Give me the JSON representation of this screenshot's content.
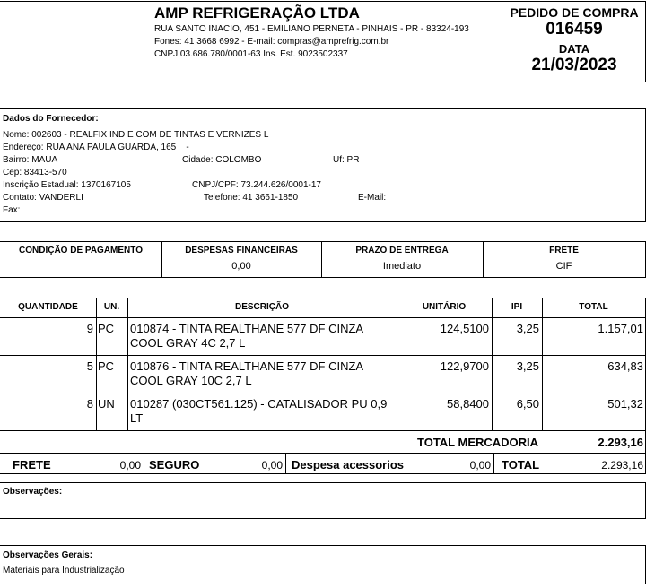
{
  "company": {
    "name": "AMP REFRIGERAÇÃO LTDA",
    "address": "RUA SANTO INACIO, 451 - EMILIANO PERNETA - PINHAIS - PR - 83324-193",
    "contact": "Fones: 41 3668 6992 - E-mail: compras@amprefrig.com.br",
    "cnpj": "CNPJ 03.686.780/0001-63 Ins. Est. 9023502337"
  },
  "order": {
    "title": "PEDIDO DE COMPRA",
    "number": "016459",
    "date_label": "DATA",
    "date": "21/03/2023"
  },
  "supplier": {
    "heading": "Dados do Fornecedor:",
    "nome": "Nome: 002603 - REALFIX IND E COM DE TINTAS E VERNIZES L",
    "endereco": "Endereço: RUA ANA PAULA GUARDA, 165    -",
    "bairro": "Bairro: MAUA",
    "cidade": "Cidade: COLOMBO",
    "uf": "Uf: PR",
    "cep": "Cep: 83413-570",
    "ie": "Inscrição Estadual: 1370167105",
    "cnpj": "CNPJ/CPF: 73.244.626/0001-17",
    "contato": "Contato: VANDERLI",
    "telefone": "Telefone: 41 3661-1850",
    "email": "E-Mail:",
    "fax": "Fax:"
  },
  "terms": [
    {
      "label": "CONDIÇÃO DE PAGAMENTO",
      "value": ""
    },
    {
      "label": "DESPESAS FINANCEIRAS",
      "value": "0,00"
    },
    {
      "label": "PRAZO DE ENTREGA",
      "value": "Imediato"
    },
    {
      "label": "FRETE",
      "value": "CIF"
    }
  ],
  "items": {
    "headers": [
      "QUANTIDADE",
      "UN.",
      "DESCRIÇÃO",
      "UNITÁRIO",
      "IPI",
      "TOTAL"
    ],
    "rows": [
      {
        "qty": "9",
        "un": "PC",
        "desc": "010874 - TINTA REALTHANE 577 DF CINZA COOL GRAY 4C 2,7 L",
        "unit": "124,5100",
        "ipi": "3,25",
        "total": "1.157,01"
      },
      {
        "qty": "5",
        "un": "PC",
        "desc": "010876 - TINTA REALTHANE 577 DF CINZA COOL GRAY 10C 2,7 L",
        "unit": "122,9700",
        "ipi": "3,25",
        "total": "634,83"
      },
      {
        "qty": "8",
        "un": "UN",
        "desc": "010287 (030CT561.125) - CATALISADOR PU 0,9 LT",
        "unit": "58,8400",
        "ipi": "6,50",
        "total": "501,32"
      }
    ],
    "total_label": "TOTAL MERCADORIA",
    "total_value": "2.293,16"
  },
  "summary": {
    "frete_label": "FRETE",
    "frete": "0,00",
    "seguro_label": "SEGURO",
    "seguro": "0,00",
    "despesa_label": "Despesa acessorios",
    "despesa": "0,00",
    "total_label": "TOTAL",
    "total": "2.293,16"
  },
  "obs": {
    "label": "Observações:",
    "value": ""
  },
  "obs_gerais": {
    "label": "Observações Gerais:",
    "value": "Materiais para Industrialização"
  }
}
